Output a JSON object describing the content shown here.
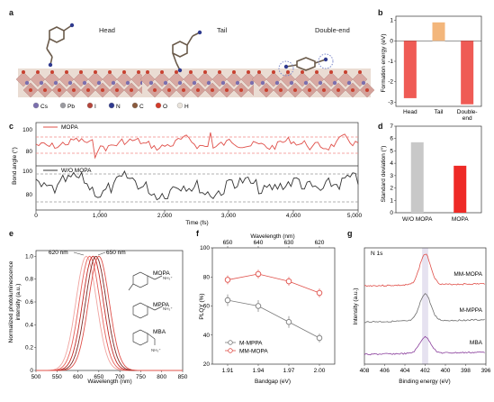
{
  "panel_letters": [
    "a",
    "b",
    "c",
    "d",
    "e",
    "f",
    "g"
  ],
  "panel_a": {
    "titles": [
      "Head",
      "Tail",
      "Double-end"
    ],
    "legend": [
      "Cs",
      "Pb",
      "I",
      "N",
      "C",
      "O",
      "H"
    ],
    "legend_colors": [
      "#7b6fae",
      "#9a9aa0",
      "#b4453b",
      "#2f3a8f",
      "#8a5a3c",
      "#d23b2a",
      "#e9e4dc"
    ]
  },
  "panel_c": {
    "series_labels": [
      "MOPA",
      "W/O MOPA"
    ],
    "ylabel": "Bond angle (°)",
    "xlabel": "Time (fs)",
    "yticks_top": [
      "100",
      "80"
    ],
    "yticks_bottom": [
      "100",
      "80"
    ],
    "xticks": [
      "0",
      "1,000",
      "2,000",
      "3,000",
      "4,000",
      "5,000"
    ]
  },
  "chart_data": [
    {
      "type": "bar",
      "panel": "b",
      "ylabel": "Formation energy (eV)",
      "categories": [
        "Head",
        "Tail",
        "Double-end"
      ],
      "values": [
        -2.8,
        0.9,
        -3.1
      ],
      "ylim": [
        -3.2,
        1.2
      ],
      "yticks": [
        "1",
        "0",
        "-1",
        "-2",
        "-3"
      ],
      "colors": [
        "#ef5b55",
        "#f3b67b",
        "#ef5b55"
      ]
    },
    {
      "type": "bar",
      "panel": "d",
      "ylabel": "Standard deviation (°)",
      "categories": [
        "W/O MOPA",
        "MOPA"
      ],
      "values": [
        5.7,
        3.8
      ],
      "ylim": [
        0,
        7
      ],
      "yticks": [
        "0",
        "1",
        "2",
        "3",
        "4",
        "5",
        "6",
        "7"
      ],
      "colors": [
        "#c8c8c8",
        "#ee2a26"
      ]
    },
    {
      "type": "line",
      "panel": "e",
      "ylabel": "Normalized photoluminescence intensity (a.u.)",
      "xlabel": "Wavelength (nm)",
      "xlim": [
        500,
        850
      ],
      "ylim": [
        0,
        1.05
      ],
      "xticks": [
        "500",
        "550",
        "600",
        "650",
        "700",
        "750",
        "800",
        "850"
      ],
      "yticks": [
        "0",
        "0.2",
        "0.4",
        "0.6",
        "0.8",
        "1.0"
      ],
      "annotations": [
        "620 nm",
        "650 nm"
      ],
      "molecules": [
        "MOPA",
        "MPPA",
        "MBA"
      ],
      "series": [
        {
          "peak": 620,
          "fwhm": 58,
          "color": "#f0a4a0"
        },
        {
          "peak": 628,
          "fwhm": 58,
          "color": "#e6605a"
        },
        {
          "peak": 636,
          "fwhm": 58,
          "color": "#c22a26"
        },
        {
          "peak": 643,
          "fwhm": 58,
          "color": "#7a2a26"
        },
        {
          "peak": 650,
          "fwhm": 58,
          "color": "#e0504a"
        }
      ]
    },
    {
      "type": "line",
      "panel": "f",
      "ylabel": "PLQY (%)",
      "xlabel": "Bandgap (eV)",
      "xlabel_top": "Wavelength (nm)",
      "x": [
        1.91,
        1.94,
        1.97,
        2.0
      ],
      "xticks": [
        "1.91",
        "1.94",
        "1.97",
        "2.00"
      ],
      "xticks_top": [
        "650",
        "640",
        "630",
        "620"
      ],
      "ylim": [
        20,
        100
      ],
      "yticks": [
        "20",
        "40",
        "60",
        "80",
        "100"
      ],
      "series": [
        {
          "name": "M-MPPA",
          "values": [
            64,
            60,
            49,
            38
          ],
          "errors": [
            4,
            4,
            4,
            3
          ],
          "color": "#7a7a7a"
        },
        {
          "name": "MM-MOPA",
          "values": [
            78,
            82,
            77,
            69
          ],
          "errors": [
            3,
            3,
            3,
            3
          ],
          "color": "#e0504a"
        }
      ]
    },
    {
      "type": "line",
      "panel": "g",
      "title": "N 1s",
      "ylabel": "Intensity (a.u.)",
      "xlabel": "Binding energy (eV)",
      "xlim": [
        408,
        396
      ],
      "xticks": [
        "408",
        "406",
        "404",
        "402",
        "400",
        "398",
        "396"
      ],
      "series": [
        {
          "name": "MM-MOPA",
          "color": "#e0504a"
        },
        {
          "name": "M-MPPA",
          "color": "#6e6e6e"
        },
        {
          "name": "MBA",
          "color": "#8a3f9c"
        }
      ]
    }
  ]
}
